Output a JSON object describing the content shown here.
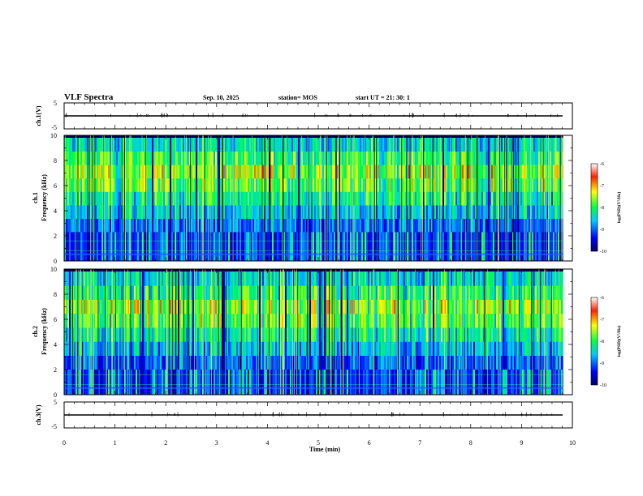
{
  "header": {
    "title": "VLF Spectra",
    "date": "Sep. 10, 2025",
    "station": "station= MOS",
    "start": "start  UT =   21: 30: 1"
  },
  "chart_data": {
    "type": "heatmap",
    "title": "VLF Spectra",
    "xlabel": "Time  (min)",
    "xlim": [
      0,
      10
    ],
    "x_ticks": [
      "0",
      "1",
      "2",
      "3",
      "4",
      "5",
      "6",
      "7",
      "8",
      "9",
      "10"
    ],
    "data_end_min": 9.82,
    "panels": [
      {
        "name": "ch1-voltage",
        "kind": "waveform",
        "ylabel": "ch.1(V)",
        "ylim": [
          -5,
          5
        ],
        "y_ticks": [
          "5",
          "-5"
        ],
        "baseline": 0
      },
      {
        "name": "ch1-spectrogram",
        "kind": "spectrogram",
        "ylabel_line1": "ch.1",
        "ylabel_line2": "Frequency  (kHz)",
        "ylim": [
          0,
          10
        ],
        "y_ticks": [
          "10",
          "8",
          "6",
          "4",
          "2",
          "0"
        ],
        "upper_band_khz": [
          2.3,
          9.8
        ],
        "colorbar": {
          "label": "log(PSD)(V²/Hz)",
          "range": [
            -10,
            -6
          ],
          "ticks": [
            "-6",
            "-7",
            "-8",
            "-9",
            "-10"
          ]
        }
      },
      {
        "name": "ch2-spectrogram",
        "kind": "spectrogram",
        "ylabel_line1": "ch.2",
        "ylabel_line2": "Frequency  (kHz)",
        "ylim": [
          0,
          10
        ],
        "y_ticks": [
          "10",
          "8",
          "6",
          "4",
          "2",
          "0"
        ],
        "upper_band_khz": [
          2.0,
          9.8
        ],
        "colorbar": {
          "label": "log(PSD)(V²/Hz)",
          "range": [
            -10,
            -6
          ],
          "ticks": [
            "-6",
            "-7",
            "-8",
            "-9",
            "-10"
          ]
        }
      },
      {
        "name": "ch3-voltage",
        "kind": "waveform",
        "ylabel": "ch.3(V)",
        "ylim": [
          -5,
          5
        ],
        "y_ticks": [
          "5",
          "-5"
        ],
        "baseline": 0
      }
    ]
  }
}
